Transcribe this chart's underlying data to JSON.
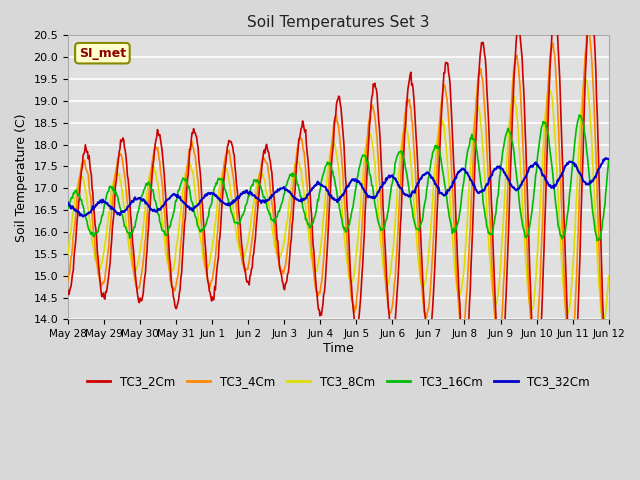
{
  "title": "Soil Temperatures Set 3",
  "xlabel": "Time",
  "ylabel": "Soil Temperature (C)",
  "ylim": [
    14.0,
    20.5
  ],
  "annotation": "SI_met",
  "fig_bg": "#d8d8d8",
  "plot_bg": "#e0e0e0",
  "grid_color": "#ffffff",
  "series": {
    "TC3_2Cm": {
      "color": "#cc0000",
      "lw": 1.2
    },
    "TC3_4Cm": {
      "color": "#ff8800",
      "lw": 1.2
    },
    "TC3_8Cm": {
      "color": "#dddd00",
      "lw": 1.2
    },
    "TC3_16Cm": {
      "color": "#00bb00",
      "lw": 1.2
    },
    "TC3_32Cm": {
      "color": "#0000cc",
      "lw": 1.5
    }
  },
  "xtick_labels": [
    "May 28",
    "May 29",
    "May 30",
    "May 31",
    "Jun 1",
    "Jun 2",
    "Jun 3",
    "Jun 4",
    "Jun 5",
    "Jun 6",
    "Jun 7",
    "Jun 8",
    "Jun 9",
    "Jun 10",
    "Jun 11",
    "Jun 12"
  ],
  "xtick_positions": [
    0,
    1,
    2,
    3,
    4,
    5,
    6,
    7,
    8,
    9,
    10,
    11,
    12,
    13,
    14,
    15
  ]
}
